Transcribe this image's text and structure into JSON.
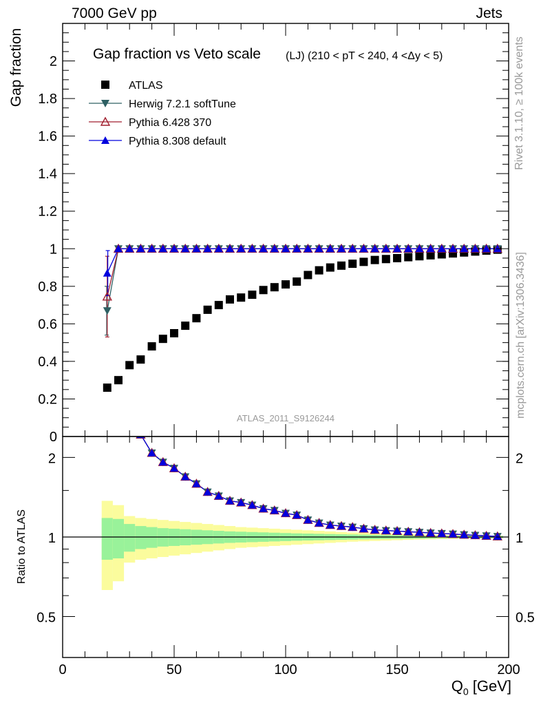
{
  "header": {
    "left": "7000 GeV pp",
    "right": "Jets"
  },
  "side_labels": {
    "rivet": "Rivet 3.1.10, ≥ 100k events",
    "mcplots": "mcplots.cern.ch [arXiv:1306.3436]"
  },
  "colors": {
    "atlas": "#000000",
    "herwig": "#2e6063",
    "pythia6": "#a01e2d",
    "pythia8": "#0000dd",
    "band_inner": "#99f29a",
    "band_outer": "#fbfc9d",
    "watermark": "#999999"
  },
  "chart_data": [
    {
      "type": "scatter",
      "title": "Gap fraction vs Veto scale",
      "subtitle": "(LJ) (210 < pT < 240, 4 <Δy < 5)",
      "ylabel": "Gap fraction",
      "watermark": "ATLAS_2011_S9126244",
      "xlim": [
        0,
        200
      ],
      "ylim": [
        0,
        2.2
      ],
      "yticks": [
        "0",
        "0.2",
        "0.4",
        "0.6",
        "0.8",
        "1",
        "1.2",
        "1.4",
        "1.6",
        "1.8",
        "2"
      ],
      "grid": false,
      "legend_position": "top-left",
      "x": [
        20,
        25,
        30,
        35,
        40,
        45,
        50,
        55,
        60,
        65,
        70,
        75,
        80,
        85,
        90,
        95,
        100,
        105,
        110,
        115,
        120,
        125,
        130,
        135,
        140,
        145,
        150,
        155,
        160,
        165,
        170,
        175,
        180,
        185,
        190,
        195
      ],
      "series": [
        {
          "name": "ATLAS",
          "marker": "square",
          "values": [
            0.26,
            0.3,
            0.38,
            0.41,
            0.48,
            0.52,
            0.55,
            0.59,
            0.63,
            0.675,
            0.7,
            0.73,
            0.74,
            0.755,
            0.78,
            0.795,
            0.81,
            0.825,
            0.86,
            0.885,
            0.9,
            0.91,
            0.92,
            0.93,
            0.94,
            0.945,
            0.95,
            0.955,
            0.96,
            0.965,
            0.97,
            0.975,
            0.98,
            0.985,
            0.99,
            0.995
          ]
        },
        {
          "name": "Herwig 7.2.1 softTune",
          "marker": "triangle-down",
          "values": [
            0.67,
            1.0,
            1.0,
            1.0,
            1.0,
            1.0,
            1.0,
            1.0,
            1.0,
            1.0,
            1.0,
            1.0,
            1.0,
            1.0,
            1.0,
            1.0,
            1.0,
            1.0,
            1.0,
            1.0,
            1.0,
            1.0,
            1.0,
            1.0,
            1.0,
            1.0,
            1.0,
            1.0,
            1.0,
            1.0,
            1.0,
            1.0,
            1.0,
            1.0,
            1.0,
            1.0
          ],
          "first_error": [
            0.54,
            0.8
          ]
        },
        {
          "name": "Pythia 6.428 370",
          "marker": "triangle-open",
          "values": [
            0.745,
            1.0,
            1.0,
            1.0,
            1.0,
            1.0,
            1.0,
            1.0,
            1.0,
            1.0,
            1.0,
            1.0,
            1.0,
            1.0,
            1.0,
            1.0,
            1.0,
            1.0,
            1.0,
            1.0,
            1.0,
            1.0,
            1.0,
            1.0,
            1.0,
            1.0,
            1.0,
            1.0,
            1.0,
            1.0,
            1.0,
            1.0,
            1.0,
            1.0,
            1.0,
            1.0
          ],
          "first_error": [
            0.53,
            0.96
          ]
        },
        {
          "name": "Pythia 8.308 default",
          "marker": "triangle-up",
          "values": [
            0.87,
            1.0,
            1.0,
            1.0,
            1.0,
            1.0,
            1.0,
            1.0,
            1.0,
            1.0,
            1.0,
            1.0,
            1.0,
            1.0,
            1.0,
            1.0,
            1.0,
            1.0,
            1.0,
            1.0,
            1.0,
            1.0,
            1.0,
            1.0,
            1.0,
            1.0,
            1.0,
            1.0,
            1.0,
            1.0,
            1.0,
            1.0,
            1.0,
            1.0,
            1.0,
            1.0
          ],
          "first_error": [
            0.75,
            0.99
          ]
        }
      ]
    },
    {
      "type": "scatter",
      "ylabel": "Ratio to ATLAS",
      "xlabel": "Q",
      "xlabel_sub": "0",
      "xlabel_unit": " [GeV]",
      "xlim": [
        0,
        200
      ],
      "ylim": [
        0.35,
        2.4
      ],
      "log_y": true,
      "xticks": [
        "0",
        "50",
        "100",
        "150",
        "200"
      ],
      "yticks": [
        "0.5",
        "1",
        "2"
      ],
      "reference_line": 1,
      "x": [
        20,
        25,
        30,
        35,
        40,
        45,
        50,
        55,
        60,
        65,
        70,
        75,
        80,
        85,
        90,
        95,
        100,
        105,
        110,
        115,
        120,
        125,
        130,
        135,
        140,
        145,
        150,
        155,
        160,
        165,
        170,
        175,
        180,
        185,
        190,
        195
      ],
      "band_inner": [
        0.18,
        0.17,
        0.12,
        0.1,
        0.09,
        0.08,
        0.075,
        0.07,
        0.065,
        0.06,
        0.055,
        0.05,
        0.047,
        0.044,
        0.041,
        0.038,
        0.035,
        0.032,
        0.03,
        0.028,
        0.026,
        0.024,
        0.022,
        0.02,
        0.018,
        0.017,
        0.016,
        0.015,
        0.014,
        0.013,
        0.012,
        0.011,
        0.01,
        0.01,
        0.01,
        0.01
      ],
      "band_outer": [
        0.37,
        0.32,
        0.2,
        0.18,
        0.17,
        0.16,
        0.15,
        0.14,
        0.13,
        0.12,
        0.11,
        0.1,
        0.09,
        0.085,
        0.08,
        0.075,
        0.07,
        0.065,
        0.06,
        0.055,
        0.05,
        0.045,
        0.04,
        0.037,
        0.034,
        0.031,
        0.028,
        0.025,
        0.022,
        0.02,
        0.018,
        0.016,
        0.014,
        0.013,
        0.012,
        0.011
      ],
      "series": [
        {
          "name": "Herwig 7.2.1 softTune",
          "values": [
            null,
            null,
            null,
            2.44,
            2.08,
            1.92,
            1.82,
            1.69,
            1.59,
            1.48,
            1.43,
            1.37,
            1.35,
            1.32,
            1.28,
            1.26,
            1.23,
            1.21,
            1.16,
            1.13,
            1.11,
            1.1,
            1.09,
            1.075,
            1.064,
            1.058,
            1.053,
            1.047,
            1.042,
            1.036,
            1.031,
            1.026,
            1.02,
            1.015,
            1.01,
            1.005
          ]
        },
        {
          "name": "Pythia 6.428 370",
          "values": [
            null,
            null,
            null,
            2.44,
            2.08,
            1.92,
            1.82,
            1.69,
            1.59,
            1.48,
            1.43,
            1.37,
            1.35,
            1.32,
            1.28,
            1.26,
            1.23,
            1.21,
            1.16,
            1.13,
            1.11,
            1.1,
            1.09,
            1.075,
            1.064,
            1.058,
            1.053,
            1.047,
            1.042,
            1.036,
            1.031,
            1.026,
            1.02,
            1.015,
            1.01,
            1.005
          ]
        },
        {
          "name": "Pythia 8.308 default",
          "values": [
            null,
            null,
            null,
            2.44,
            2.08,
            1.92,
            1.82,
            1.69,
            1.59,
            1.48,
            1.43,
            1.37,
            1.35,
            1.32,
            1.28,
            1.26,
            1.23,
            1.21,
            1.16,
            1.13,
            1.11,
            1.1,
            1.09,
            1.075,
            1.064,
            1.058,
            1.053,
            1.047,
            1.042,
            1.036,
            1.031,
            1.026,
            1.02,
            1.015,
            1.01,
            1.005
          ]
        }
      ]
    }
  ]
}
